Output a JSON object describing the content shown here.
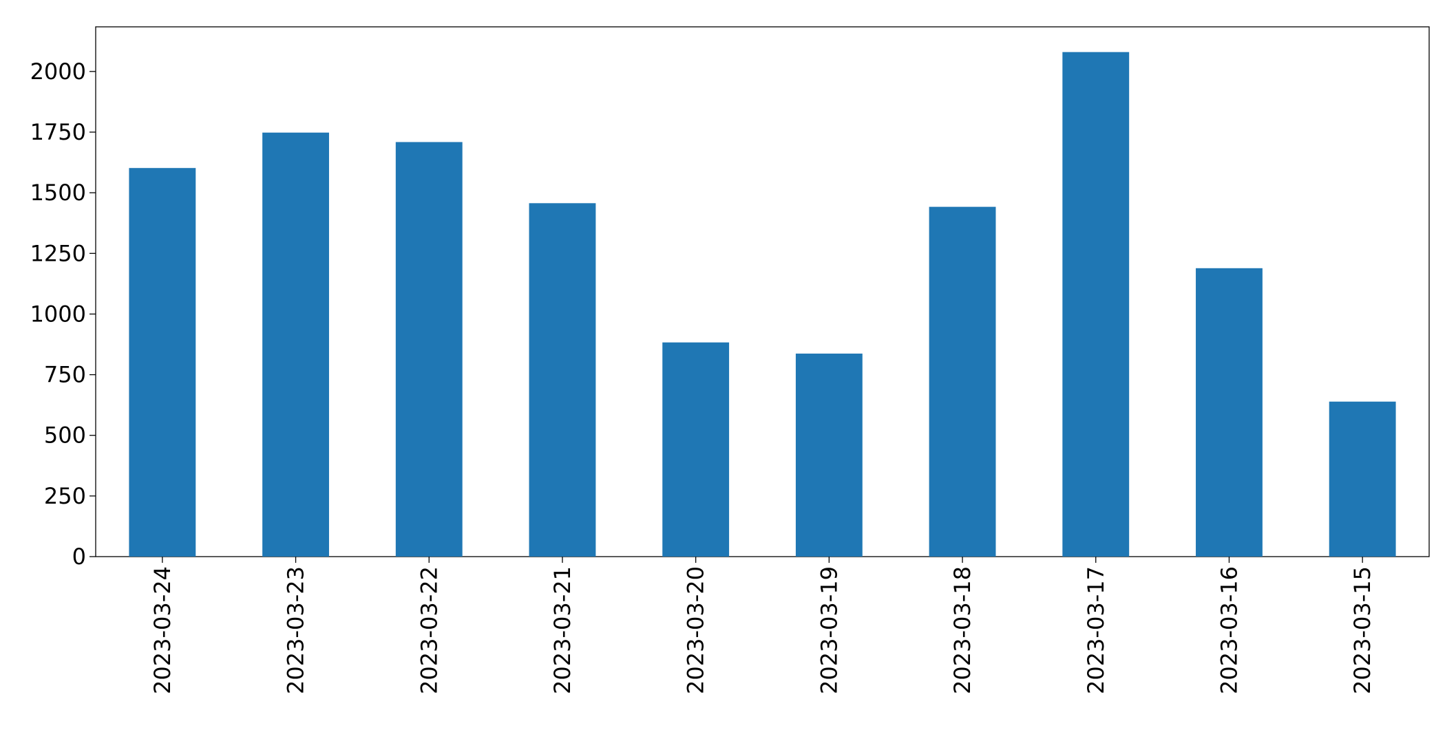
{
  "chart_data": {
    "type": "bar",
    "categories": [
      "2023-03-24",
      "2023-03-23",
      "2023-03-22",
      "2023-03-21",
      "2023-03-20",
      "2023-03-19",
      "2023-03-18",
      "2023-03-17",
      "2023-03-16",
      "2023-03-15"
    ],
    "values": [
      1602,
      1748,
      1709,
      1457,
      883,
      837,
      1442,
      2080,
      1189,
      639
    ],
    "color": "#1f77b4",
    "ylim": [
      0,
      2184
    ],
    "yticks": [
      0,
      250,
      500,
      750,
      1000,
      1250,
      1500,
      1750,
      2000
    ],
    "grid": false
  }
}
